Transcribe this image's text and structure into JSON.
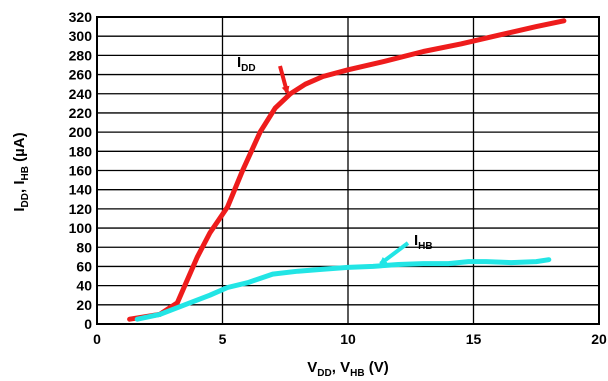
{
  "chart_data": {
    "type": "line",
    "xlabel": {
      "main": "V",
      "sub1": "DD",
      "mid": ", V",
      "sub2": "HB",
      "unit": " (V)"
    },
    "ylabel": {
      "main": "I",
      "sub1": "DD",
      "mid": ", I",
      "sub2": "HB",
      "unit": " (µA)"
    },
    "xlim": [
      0,
      20
    ],
    "ylim": [
      0,
      320
    ],
    "xticks": [
      "0",
      "5",
      "10",
      "15",
      "20"
    ],
    "yticks": [
      "0",
      "20",
      "40",
      "60",
      "80",
      "100",
      "120",
      "140",
      "160",
      "180",
      "200",
      "220",
      "240",
      "260",
      "280",
      "300",
      "320"
    ],
    "grid": true,
    "series": [
      {
        "name": {
          "main": "I",
          "sub": "DD"
        },
        "color": "#ee1c1c",
        "x": [
          1.3,
          2.5,
          3.2,
          3.5,
          4.0,
          4.5,
          5.2,
          5.8,
          6.5,
          7.1,
          7.7,
          8.3,
          9.0,
          10.0,
          11.5,
          13.0,
          14.5,
          16.0,
          17.5,
          18.6
        ],
        "y": [
          5,
          10,
          22,
          40,
          70,
          95,
          122,
          160,
          200,
          225,
          240,
          250,
          258,
          265,
          274,
          284,
          292,
          301,
          310,
          316
        ]
      },
      {
        "name": {
          "main": "I",
          "sub": "HB"
        },
        "color": "#22e5e5",
        "x": [
          1.6,
          2.5,
          3.5,
          4.5,
          5.2,
          6.0,
          7.0,
          8.0,
          9.0,
          10.0,
          11.0,
          12.0,
          13.0,
          14.0,
          14.8,
          15.5,
          16.5,
          17.5,
          18.0
        ],
        "y": [
          5,
          10,
          20,
          30,
          38,
          43,
          52,
          55,
          57,
          59,
          60,
          62,
          63,
          63,
          65,
          65,
          64,
          65,
          67
        ]
      }
    ],
    "annotations": [
      {
        "series": 0,
        "x": 7.6,
        "y": 239
      },
      {
        "series": 1,
        "x": 11.2,
        "y": 61
      }
    ]
  }
}
